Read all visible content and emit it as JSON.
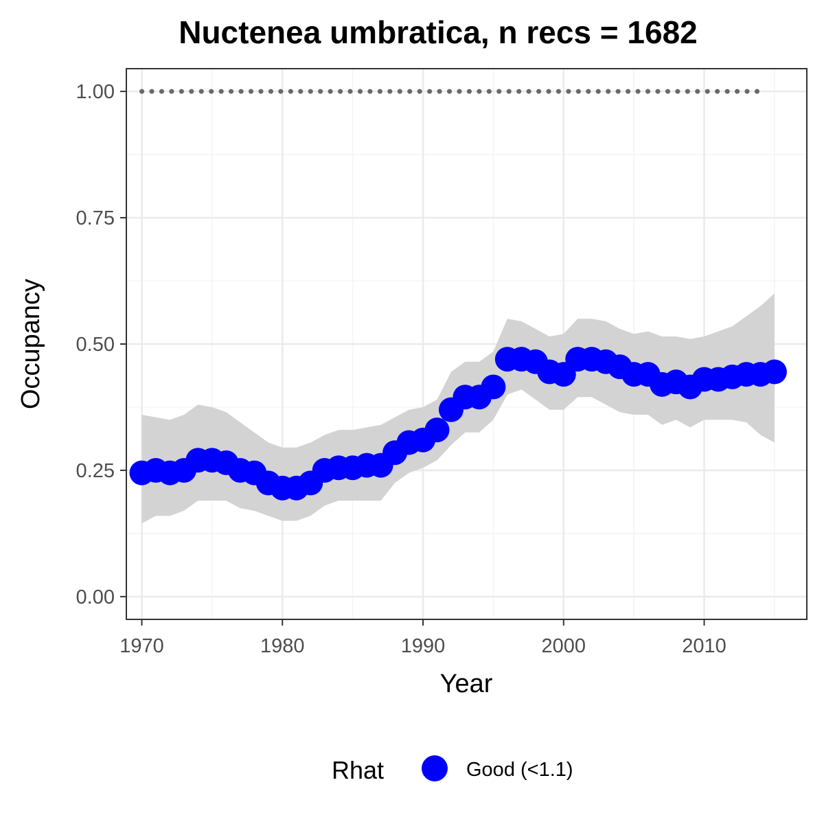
{
  "chart_data": {
    "type": "line",
    "title": "Nuctenea umbratica, n recs = 1682",
    "xlabel": "Year",
    "ylabel": "Occupancy",
    "xlim": [
      1968.9,
      2017.3
    ],
    "ylim": [
      -0.045,
      1.045
    ],
    "x_ticks": [
      1970,
      1980,
      1990,
      2000,
      2010
    ],
    "x_tick_labels": [
      "1970",
      "1980",
      "1990",
      "2000",
      "2010"
    ],
    "y_ticks": [
      0,
      0.25,
      0.5,
      0.75,
      1.0
    ],
    "y_tick_labels": [
      "0.00",
      "0.25",
      "0.50",
      "0.75",
      "1.00"
    ],
    "grid": true,
    "legend": {
      "title": "Rhat",
      "position": "bottom",
      "entries": [
        {
          "label": "Good (<1.1)",
          "color": "#0000ff"
        }
      ]
    },
    "x": [
      1970,
      1971,
      1972,
      1973,
      1974,
      1975,
      1976,
      1977,
      1978,
      1979,
      1980,
      1981,
      1982,
      1983,
      1984,
      1985,
      1986,
      1987,
      1988,
      1989,
      1990,
      1991,
      1992,
      1993,
      1994,
      1995,
      1996,
      1997,
      1998,
      1999,
      2000,
      2001,
      2002,
      2003,
      2004,
      2005,
      2006,
      2007,
      2008,
      2009,
      2010,
      2011,
      2012,
      2013,
      2014,
      2015
    ],
    "series": [
      {
        "name": "Good (<1.1)",
        "color": "#0000ff",
        "values": [
          0.245,
          0.25,
          0.245,
          0.25,
          0.27,
          0.27,
          0.265,
          0.25,
          0.245,
          0.225,
          0.215,
          0.215,
          0.225,
          0.25,
          0.255,
          0.255,
          0.26,
          0.26,
          0.285,
          0.305,
          0.31,
          0.33,
          0.37,
          0.395,
          0.395,
          0.415,
          0.47,
          0.47,
          0.465,
          0.445,
          0.44,
          0.47,
          0.47,
          0.465,
          0.455,
          0.44,
          0.44,
          0.42,
          0.425,
          0.415,
          0.43,
          0.43,
          0.435,
          0.44,
          0.44,
          0.445
        ]
      }
    ],
    "ribbon": {
      "color": "#d3d3d3",
      "lower": [
        0.145,
        0.16,
        0.16,
        0.17,
        0.19,
        0.19,
        0.19,
        0.175,
        0.17,
        0.16,
        0.15,
        0.15,
        0.16,
        0.18,
        0.19,
        0.19,
        0.19,
        0.19,
        0.225,
        0.245,
        0.255,
        0.27,
        0.3,
        0.325,
        0.325,
        0.35,
        0.4,
        0.41,
        0.39,
        0.37,
        0.37,
        0.395,
        0.395,
        0.38,
        0.365,
        0.36,
        0.36,
        0.34,
        0.35,
        0.335,
        0.35,
        0.35,
        0.35,
        0.345,
        0.32,
        0.305
      ],
      "upper": [
        0.36,
        0.355,
        0.35,
        0.36,
        0.38,
        0.375,
        0.365,
        0.345,
        0.325,
        0.305,
        0.295,
        0.295,
        0.305,
        0.32,
        0.33,
        0.33,
        0.335,
        0.34,
        0.355,
        0.37,
        0.375,
        0.39,
        0.445,
        0.465,
        0.465,
        0.485,
        0.55,
        0.545,
        0.53,
        0.515,
        0.52,
        0.55,
        0.55,
        0.545,
        0.53,
        0.52,
        0.525,
        0.515,
        0.515,
        0.51,
        0.515,
        0.525,
        0.535,
        0.555,
        0.575,
        0.6
      ]
    },
    "reference_line": {
      "y": 1.0,
      "x_range": [
        1970,
        2014
      ],
      "style": "dotted",
      "color": "#696969"
    }
  }
}
